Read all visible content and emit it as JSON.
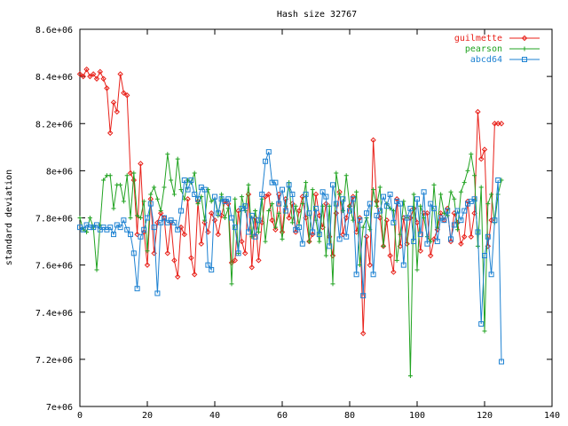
{
  "chart_data": {
    "type": "line",
    "title": "Hash size 32767",
    "xlabel": "",
    "ylabel": "standard deviation",
    "xlim": [
      0,
      140
    ],
    "ylim": [
      7000000,
      8600000
    ],
    "x_ticks": [
      0,
      20,
      40,
      60,
      80,
      100,
      120,
      140
    ],
    "x_tick_labels": [
      "0",
      "20",
      "40",
      "60",
      "80",
      "100",
      "120",
      "140"
    ],
    "y_ticks": [
      7000000,
      7200000,
      7400000,
      7600000,
      7800000,
      8000000,
      8200000,
      8400000,
      8600000
    ],
    "y_tick_labels": [
      "7e+06",
      "7.2e+06",
      "7.4e+06",
      "7.6e+06",
      "7.8e+06",
      "8e+06",
      "8.2e+06",
      "8.4e+06",
      "8.6e+06"
    ],
    "grid": false,
    "legend_position": "top-right",
    "series": [
      {
        "name": "guilmette",
        "color": "#e8211a",
        "marker": "diamond",
        "x": [
          0,
          1,
          2,
          3,
          4,
          5,
          6,
          7,
          8,
          9,
          10,
          11,
          12,
          13,
          14,
          15,
          16,
          17,
          18,
          19,
          20,
          21,
          22,
          23,
          24,
          25,
          26,
          27,
          28,
          29,
          30,
          31,
          32,
          33,
          34,
          35,
          36,
          37,
          38,
          39,
          40,
          41,
          42,
          43,
          44,
          45,
          46,
          47,
          48,
          49,
          50,
          51,
          52,
          53,
          54,
          55,
          56,
          57,
          58,
          59,
          60,
          61,
          62,
          63,
          64,
          65,
          66,
          67,
          68,
          69,
          70,
          71,
          72,
          73,
          74,
          75,
          76,
          77,
          78,
          79,
          80,
          81,
          82,
          83,
          84,
          85,
          86,
          87,
          88,
          89,
          90,
          91,
          92,
          93,
          94,
          95,
          96,
          97,
          98,
          99,
          100,
          101,
          102,
          103,
          104,
          105,
          106,
          107,
          108,
          109,
          110,
          111,
          112,
          113,
          114,
          115,
          116,
          117,
          118,
          119,
          120,
          121,
          122,
          123,
          124,
          125
        ],
        "y": [
          8410000,
          8400000,
          8430000,
          8400000,
          8410000,
          8390000,
          8420000,
          8390000,
          8350000,
          8160000,
          8290000,
          8250000,
          8410000,
          8330000,
          8320000,
          7990000,
          7960000,
          7730000,
          8030000,
          7740000,
          7600000,
          7880000,
          7650000,
          7780000,
          7820000,
          7800000,
          7650000,
          7780000,
          7620000,
          7550000,
          7760000,
          7730000,
          7880000,
          7630000,
          7560000,
          7870000,
          7690000,
          7780000,
          7740000,
          7820000,
          7790000,
          7730000,
          7810000,
          7870000,
          7860000,
          7610000,
          7620000,
          7830000,
          7700000,
          7650000,
          7900000,
          7590000,
          7800000,
          7620000,
          7780000,
          7890000,
          7900000,
          7790000,
          7750000,
          7900000,
          7740000,
          7880000,
          7800000,
          7860000,
          7740000,
          7830000,
          7890000,
          7800000,
          7700000,
          7730000,
          7900000,
          7810000,
          7760000,
          7860000,
          7720000,
          7640000,
          7820000,
          7910000,
          7730000,
          7800000,
          7850000,
          7890000,
          7740000,
          7800000,
          7310000,
          7720000,
          7600000,
          8130000,
          7870000,
          7800000,
          7680000,
          7790000,
          7640000,
          7570000,
          7880000,
          7680000,
          7800000,
          7690000,
          7800000,
          7840000,
          7780000,
          7660000,
          7820000,
          7820000,
          7640000,
          7710000,
          7750000,
          7820000,
          7790000,
          7840000,
          7700000,
          7820000,
          7780000,
          7690000,
          7720000,
          7870000,
          7720000,
          7820000,
          8250000,
          8050000,
          8090000,
          7680000,
          7790000,
          8200000,
          8200000,
          8200000
        ],
        "note_x_end": 125
      },
      {
        "name": "pearson",
        "color": "#21a321",
        "marker": "plus",
        "x": [
          0,
          1,
          2,
          3,
          4,
          5,
          6,
          7,
          8,
          9,
          10,
          11,
          12,
          13,
          14,
          15,
          16,
          17,
          18,
          19,
          20,
          21,
          22,
          23,
          24,
          25,
          26,
          27,
          28,
          29,
          30,
          31,
          32,
          33,
          34,
          35,
          36,
          37,
          38,
          39,
          40,
          41,
          42,
          43,
          44,
          45,
          46,
          47,
          48,
          49,
          50,
          51,
          52,
          53,
          54,
          55,
          56,
          57,
          58,
          59,
          60,
          61,
          62,
          63,
          64,
          65,
          66,
          67,
          68,
          69,
          70,
          71,
          72,
          73,
          74,
          75,
          76,
          77,
          78,
          79,
          80,
          81,
          82,
          83,
          84,
          85,
          86,
          87,
          88,
          89,
          90,
          91,
          92,
          93,
          94,
          95,
          96,
          97,
          98,
          99,
          100,
          101,
          102,
          103,
          104,
          105,
          106,
          107,
          108,
          109,
          110,
          111,
          112,
          113,
          114,
          115,
          116,
          117,
          118,
          119,
          120,
          121,
          122,
          123,
          124,
          125
        ],
        "y": [
          7800000,
          7750000,
          7740000,
          7800000,
          7760000,
          7580000,
          7770000,
          7960000,
          7980000,
          7980000,
          7840000,
          7940000,
          7940000,
          7870000,
          7980000,
          7800000,
          7990000,
          7810000,
          7800000,
          7870000,
          7660000,
          7900000,
          7930000,
          7880000,
          7830000,
          7930000,
          8070000,
          7960000,
          7900000,
          8050000,
          7920000,
          7880000,
          7960000,
          7950000,
          7990000,
          7860000,
          7890000,
          7790000,
          7920000,
          7870000,
          7880000,
          7810000,
          7900000,
          7800000,
          7840000,
          7520000,
          7880000,
          7650000,
          7890000,
          7830000,
          7940000,
          7720000,
          7830000,
          7740000,
          7880000,
          7700000,
          7830000,
          7860000,
          7760000,
          7820000,
          7710000,
          7850000,
          7950000,
          7780000,
          7850000,
          7770000,
          7860000,
          7950000,
          7700000,
          7920000,
          7790000,
          7700000,
          7850000,
          7640000,
          7850000,
          7520000,
          7990000,
          7900000,
          7830000,
          7980000,
          7850000,
          7790000,
          7910000,
          7600000,
          7760000,
          7800000,
          7750000,
          7920000,
          7850000,
          7930000,
          7680000,
          7860000,
          7840000,
          7830000,
          7620000,
          7730000,
          7870000,
          7800000,
          7130000,
          7900000,
          7580000,
          7850000,
          7800000,
          7720000,
          7700000,
          7940000,
          7760000,
          7900000,
          7820000,
          7810000,
          7910000,
          7880000,
          7750000,
          7910000,
          7950000,
          8000000,
          8070000,
          7980000,
          7680000,
          7930000,
          7320000,
          7860000,
          7900000,
          7780000,
          7900000,
          7960000
        ],
        "note_x_end": 125
      },
      {
        "name": "abcd64",
        "color": "#1e82d2",
        "marker": "square",
        "x": [
          0,
          1,
          2,
          3,
          4,
          5,
          6,
          7,
          8,
          9,
          10,
          11,
          12,
          13,
          14,
          15,
          16,
          17,
          18,
          19,
          20,
          21,
          22,
          23,
          24,
          25,
          26,
          27,
          28,
          29,
          30,
          31,
          32,
          33,
          34,
          35,
          36,
          37,
          38,
          39,
          40,
          41,
          42,
          43,
          44,
          45,
          46,
          47,
          48,
          49,
          50,
          51,
          52,
          53,
          54,
          55,
          56,
          57,
          58,
          59,
          60,
          61,
          62,
          63,
          64,
          65,
          66,
          67,
          68,
          69,
          70,
          71,
          72,
          73,
          74,
          75,
          76,
          77,
          78,
          79,
          80,
          81,
          82,
          83,
          84,
          85,
          86,
          87,
          88,
          89,
          90,
          91,
          92,
          93,
          94,
          95,
          96,
          97,
          98,
          99,
          100,
          101,
          102,
          103,
          104,
          105,
          106,
          107,
          108,
          109,
          110,
          111,
          112,
          113,
          114,
          115,
          116,
          117,
          118,
          119,
          120,
          121,
          122,
          123,
          124,
          125
        ],
        "y": [
          7760000,
          7750000,
          7770000,
          7760000,
          7760000,
          7770000,
          7750000,
          7760000,
          7750000,
          7760000,
          7730000,
          7770000,
          7760000,
          7790000,
          7750000,
          7730000,
          7650000,
          7500000,
          7720000,
          7750000,
          7800000,
          7860000,
          7760000,
          7480000,
          7780000,
          7800000,
          7780000,
          7790000,
          7780000,
          7750000,
          7830000,
          7960000,
          7920000,
          7960000,
          7900000,
          7880000,
          7930000,
          7920000,
          7600000,
          7580000,
          7890000,
          7820000,
          7880000,
          7870000,
          7880000,
          7800000,
          7760000,
          7650000,
          7840000,
          7850000,
          7740000,
          7810000,
          7720000,
          7790000,
          7900000,
          8040000,
          8080000,
          7950000,
          7950000,
          7860000,
          7920000,
          7830000,
          7940000,
          7900000,
          7750000,
          7760000,
          7690000,
          7900000,
          7820000,
          7740000,
          7840000,
          7730000,
          7910000,
          7890000,
          7680000,
          7940000,
          7860000,
          7710000,
          7880000,
          7720000,
          7830000,
          7880000,
          7560000,
          7790000,
          7470000,
          7820000,
          7860000,
          7560000,
          7810000,
          7830000,
          7890000,
          7850000,
          7900000,
          7780000,
          7870000,
          7860000,
          7600000,
          7800000,
          7840000,
          7700000,
          7880000,
          7730000,
          7910000,
          7690000,
          7860000,
          7840000,
          7700000,
          7800000,
          7790000,
          7830000,
          7710000,
          7770000,
          7830000,
          7790000,
          7830000,
          7860000,
          7870000,
          7880000,
          7740000,
          7350000,
          7640000,
          7720000,
          7560000,
          7790000,
          7960000,
          7190000
        ],
        "note_x_end": 125
      }
    ]
  }
}
